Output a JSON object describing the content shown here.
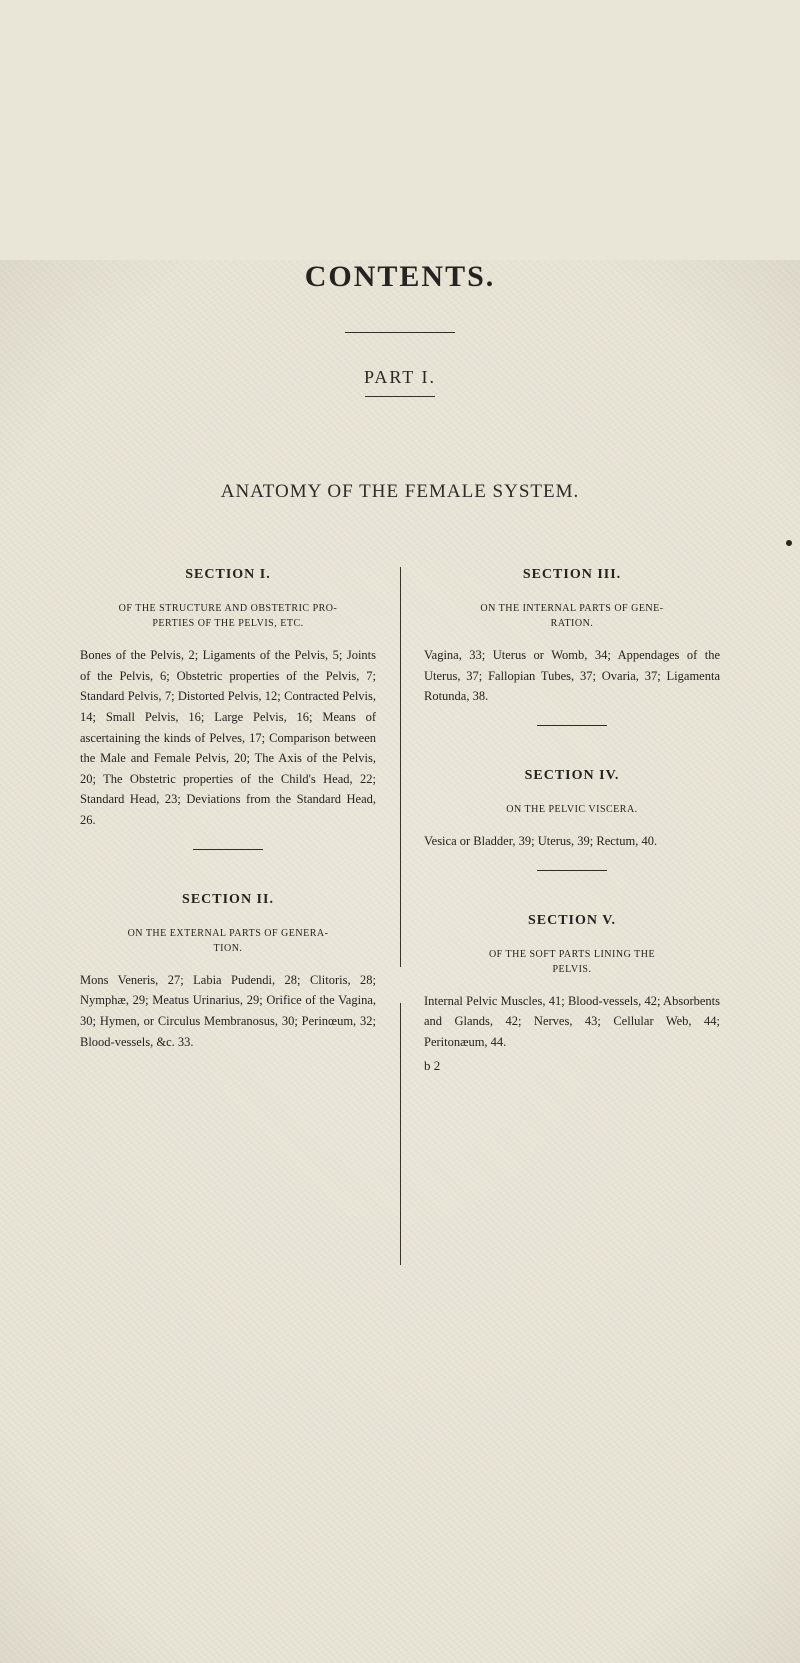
{
  "title": "CONTENTS.",
  "part": "PART I.",
  "anatomy": "ANATOMY OF THE FEMALE SYSTEM.",
  "left": {
    "s1": {
      "title": "SECTION I.",
      "sub1": "OF THE STRUCTURE AND OBSTETRIC PRO-",
      "sub2": "PERTIES OF THE PELVIS, ETC.",
      "p1": "Bones of the Pelvis, 2; Ligaments of the Pelvis, 5; Joints of the Pelvis, 6; Obstetric properties of the Pelvis, 7; Standard Pelvis, 7; Distorted Pelvis, 12; Contracted Pelvis, 14; Small Pelvis, 16; Large Pelvis, 16; Means of ascertaining the kinds of Pelves, 17; Comparison between the Male and Female Pelvis, 20; The Axis of the Pelvis, 20; The Obstetric properties of the Child's Head, 22; Standard Head, 23; Deviations from the Standard Head, 26."
    },
    "s2": {
      "title": "SECTION II.",
      "sub1": "ON THE EXTERNAL PARTS OF GENERA-",
      "sub2": "TION.",
      "p1": "Mons Veneris, 27; Labia Pudendi, 28; Clitoris, 28; Nymphæ, 29; Meatus Urinarius, 29; Orifice of the Vagina, 30; Hymen, or Circulus Membranosus, 30; Perinœum, 32; Blood-vessels, &c. 33."
    }
  },
  "right": {
    "s3": {
      "title": "SECTION III.",
      "sub1": "ON THE INTERNAL PARTS OF GENE-",
      "sub2": "RATION.",
      "p1": "Vagina, 33; Uterus or Womb, 34; Appendages of the Uterus, 37; Fallopian Tubes, 37; Ovaria, 37; Ligamenta Rotunda, 38."
    },
    "s4": {
      "title": "SECTION IV.",
      "sub": "ON THE PELVIC VISCERA.",
      "p1": "Vesica or Bladder, 39; Uterus, 39; Rectum, 40."
    },
    "s5": {
      "title": "SECTION V.",
      "sub1": "OF THE SOFT PARTS LINING THE",
      "sub2": "PELVIS.",
      "p1": "Internal Pelvic Muscles, 41; Blood-vessels, 42; Absorbents and Glands, 42; Nerves, 43; Cellular Web, 44; Peritonæum, 44."
    },
    "sig": "b 2"
  }
}
